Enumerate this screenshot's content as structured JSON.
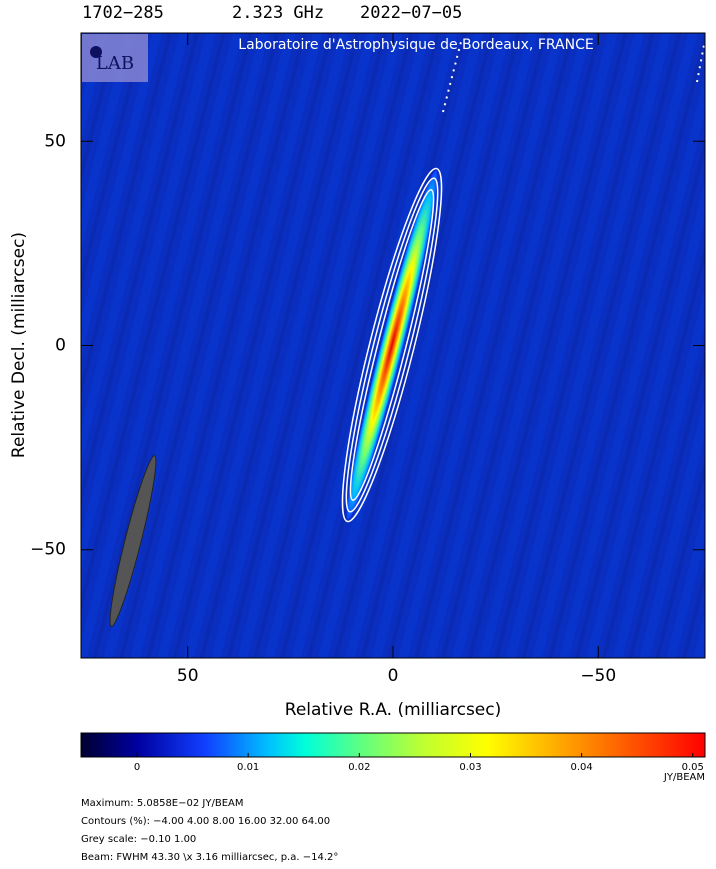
{
  "header": {
    "source": "1702−285",
    "frequency": "2.323 GHz",
    "date": "2022−07−05"
  },
  "chart_data": {
    "type": "image",
    "title": "Laboratoire d'Astrophysique de Bordeaux, FRANCE",
    "logo": "LAB",
    "x_label": "Relative R.A. (milliarcsec)",
    "y_label": "Relative Decl. (milliarcsec)",
    "xlim": [
      76,
      -76
    ],
    "ylim": [
      -76.5,
      76.5
    ],
    "xticks": [
      50,
      0,
      {
        "value": -50,
        "label": "−50"
      }
    ],
    "yticks": [
      {
        "value": -50,
        "label": "−50"
      },
      0,
      50
    ],
    "colorbar": {
      "clim": [
        -0.00504,
        0.0511
      ],
      "ticks": [
        0,
        0.01,
        0.02,
        0.03,
        0.04,
        0.05
      ],
      "unit": "JY/BEAM"
    }
  },
  "footer": {
    "maximum": "Maximum: 5.0858E−02 JY/BEAM",
    "contours": "Contours (%): −4.00 4.00 8.00 16.00 32.00 64.00",
    "grey_scale": "Grey scale: −0.10 1.00",
    "beam": "Beam: FWHM 43.30 \\x 3.16 milliarcsec, p.a. −14.2°"
  }
}
